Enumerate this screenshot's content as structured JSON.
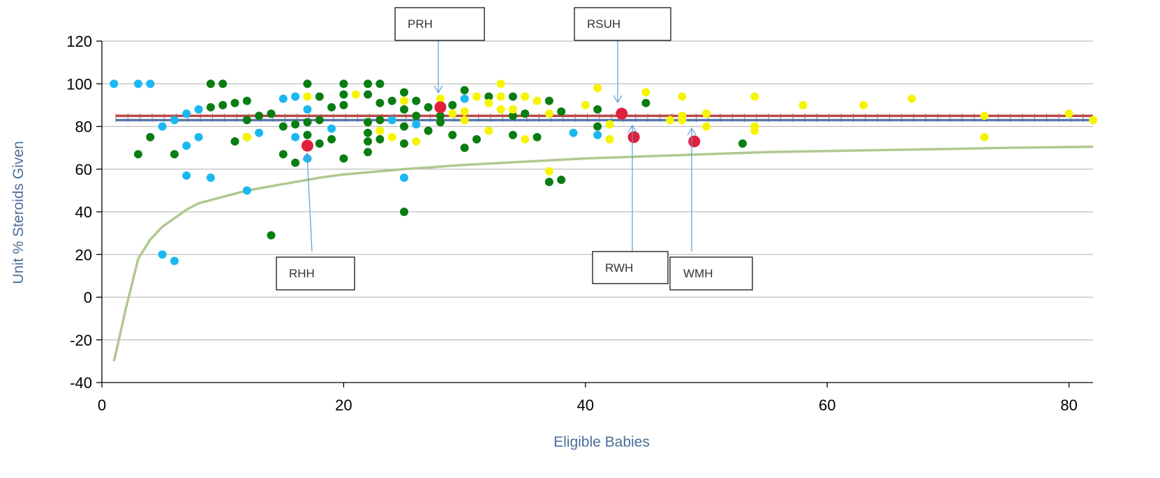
{
  "chart_data": {
    "type": "scatter",
    "title": "",
    "xlabel": "Eligible Babies",
    "ylabel": "Unit % Steroids Given",
    "xlim": [
      0,
      82
    ],
    "ylim": [
      -40,
      120
    ],
    "xticks": [
      0,
      20,
      40,
      60,
      80
    ],
    "yticks": [
      -40,
      -20,
      0,
      20,
      40,
      60,
      80,
      100,
      120
    ],
    "grid": "horizontal",
    "colors": {
      "cyan": "#1ab8f0",
      "green": "#0a7d12",
      "yellow": "#f5f500",
      "red": "#e0203c",
      "mean_line": "#b84a4a",
      "target_line": "#5878a8",
      "limit_curve": "#b0c890",
      "grid": "#bfbfbf",
      "arrow": "#5b9bd5"
    },
    "reference_lines": {
      "mean": 85,
      "target": 83,
      "limit_curve": [
        [
          1,
          -30
        ],
        [
          2,
          -5
        ],
        [
          3,
          18
        ],
        [
          4,
          27
        ],
        [
          5,
          33
        ],
        [
          6,
          37
        ],
        [
          7,
          41
        ],
        [
          8,
          44
        ],
        [
          10,
          47
        ],
        [
          12,
          50
        ],
        [
          15,
          53
        ],
        [
          18,
          56
        ],
        [
          20,
          57.5
        ],
        [
          25,
          60
        ],
        [
          30,
          62
        ],
        [
          35,
          63.5
        ],
        [
          40,
          65
        ],
        [
          45,
          66
        ],
        [
          50,
          67
        ],
        [
          55,
          68
        ],
        [
          60,
          68.5
        ],
        [
          65,
          69
        ],
        [
          70,
          69.5
        ],
        [
          75,
          70
        ],
        [
          82,
          70.5
        ]
      ]
    },
    "series": [
      {
        "group": "cyan",
        "points": [
          [
            1,
            100
          ],
          [
            3,
            100
          ],
          [
            4,
            100
          ],
          [
            5,
            80
          ],
          [
            5,
            20
          ],
          [
            6,
            83
          ],
          [
            6,
            17
          ],
          [
            7,
            86
          ],
          [
            7,
            71
          ],
          [
            7,
            57
          ],
          [
            8,
            88
          ],
          [
            8,
            75
          ],
          [
            9,
            56
          ],
          [
            12,
            50
          ],
          [
            13,
            77
          ],
          [
            15,
            93
          ],
          [
            16,
            94
          ],
          [
            16,
            75
          ],
          [
            17,
            88
          ],
          [
            17,
            65
          ],
          [
            19,
            79
          ],
          [
            24,
            83
          ],
          [
            25,
            56
          ],
          [
            26,
            81
          ],
          [
            30,
            93
          ],
          [
            39,
            77
          ],
          [
            41,
            76
          ]
        ]
      },
      {
        "group": "green",
        "points": [
          [
            3,
            67
          ],
          [
            4,
            75
          ],
          [
            6,
            67
          ],
          [
            9,
            100
          ],
          [
            9,
            89
          ],
          [
            10,
            100
          ],
          [
            10,
            90
          ],
          [
            11,
            91
          ],
          [
            11,
            73
          ],
          [
            12,
            92
          ],
          [
            12,
            83
          ],
          [
            12,
            75
          ],
          [
            13,
            85
          ],
          [
            14,
            86
          ],
          [
            14,
            29
          ],
          [
            15,
            80
          ],
          [
            15,
            67
          ],
          [
            16,
            81
          ],
          [
            16,
            63
          ],
          [
            17,
            100
          ],
          [
            17,
            82
          ],
          [
            17,
            76
          ],
          [
            18,
            94
          ],
          [
            18,
            83
          ],
          [
            18,
            72
          ],
          [
            19,
            89
          ],
          [
            19,
            74
          ],
          [
            20,
            100
          ],
          [
            20,
            95
          ],
          [
            20,
            90
          ],
          [
            20,
            65
          ],
          [
            22,
            100
          ],
          [
            22,
            95
          ],
          [
            22,
            82
          ],
          [
            22,
            77
          ],
          [
            22,
            73
          ],
          [
            22,
            68
          ],
          [
            23,
            100
          ],
          [
            23,
            91
          ],
          [
            23,
            83
          ],
          [
            23,
            74
          ],
          [
            24,
            92
          ],
          [
            25,
            96
          ],
          [
            25,
            88
          ],
          [
            25,
            80
          ],
          [
            25,
            72
          ],
          [
            25,
            40
          ],
          [
            26,
            92
          ],
          [
            26,
            85
          ],
          [
            27,
            89
          ],
          [
            27,
            78
          ],
          [
            28,
            85
          ],
          [
            28,
            82
          ],
          [
            29,
            90
          ],
          [
            29,
            76
          ],
          [
            30,
            97
          ],
          [
            30,
            70
          ],
          [
            31,
            74
          ],
          [
            32,
            94
          ],
          [
            34,
            94
          ],
          [
            34,
            85
          ],
          [
            34,
            76
          ],
          [
            35,
            86
          ],
          [
            36,
            75
          ],
          [
            37,
            92
          ],
          [
            37,
            54
          ],
          [
            38,
            87
          ],
          [
            38,
            55
          ],
          [
            41,
            88
          ],
          [
            41,
            80
          ],
          [
            45,
            91
          ],
          [
            53,
            72
          ]
        ]
      },
      {
        "group": "yellow",
        "points": [
          [
            12,
            75
          ],
          [
            17,
            94
          ],
          [
            21,
            95
          ],
          [
            23,
            78
          ],
          [
            24,
            75
          ],
          [
            25,
            92
          ],
          [
            26,
            73
          ],
          [
            28,
            93
          ],
          [
            29,
            86
          ],
          [
            30,
            87
          ],
          [
            30,
            83
          ],
          [
            31,
            94
          ],
          [
            32,
            91
          ],
          [
            32,
            78
          ],
          [
            33,
            100
          ],
          [
            33,
            94
          ],
          [
            33,
            88
          ],
          [
            34,
            88
          ],
          [
            35,
            94
          ],
          [
            35,
            74
          ],
          [
            36,
            92
          ],
          [
            37,
            86
          ],
          [
            37,
            59
          ],
          [
            40,
            90
          ],
          [
            41,
            98
          ],
          [
            42,
            81
          ],
          [
            42,
            74
          ],
          [
            45,
            96
          ],
          [
            47,
            83
          ],
          [
            48,
            94
          ],
          [
            48,
            85
          ],
          [
            48,
            83
          ],
          [
            50,
            86
          ],
          [
            50,
            80
          ],
          [
            54,
            94
          ],
          [
            54,
            80
          ],
          [
            54,
            78
          ],
          [
            58,
            90
          ],
          [
            63,
            90
          ],
          [
            67,
            93
          ],
          [
            73,
            85
          ],
          [
            73,
            75
          ],
          [
            80,
            86
          ],
          [
            82,
            83
          ]
        ]
      },
      {
        "group": "red",
        "points": [
          [
            17,
            71
          ],
          [
            28,
            89
          ],
          [
            43,
            86
          ],
          [
            44,
            75
          ],
          [
            49,
            73
          ]
        ]
      }
    ],
    "annotations": [
      {
        "label": "PRH",
        "x": 28,
        "y": 89
      },
      {
        "label": "RSUH",
        "x": 43,
        "y": 86
      },
      {
        "label": "RHH",
        "x": 17,
        "y": 65
      },
      {
        "label": "RWH",
        "x": 44,
        "y": 75
      },
      {
        "label": "WMH",
        "x": 49,
        "y": 73
      }
    ]
  }
}
